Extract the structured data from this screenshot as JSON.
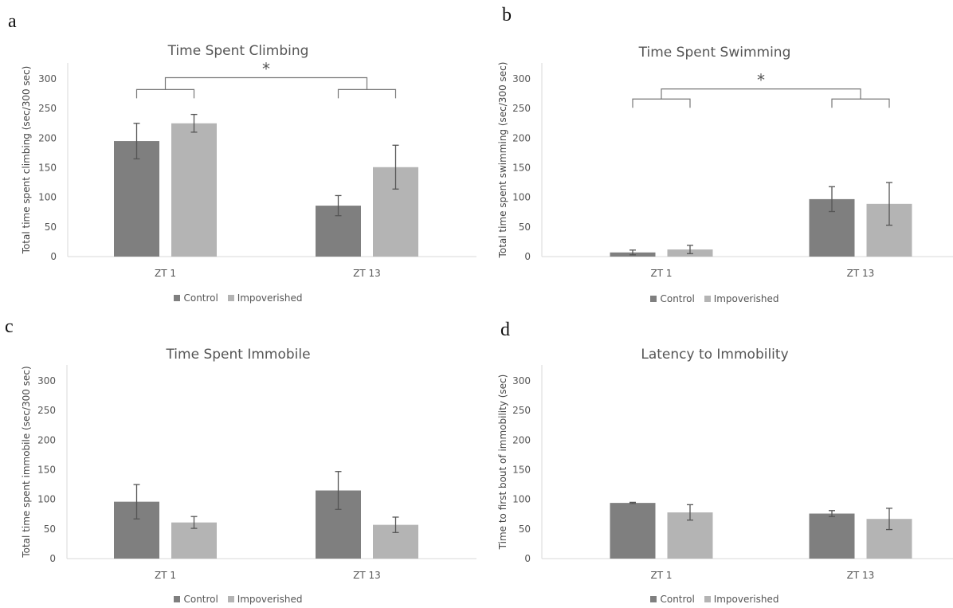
{
  "colors": {
    "control": "#7f7f7f",
    "impoverished": "#b4b4b4",
    "axis": "#d9d9d9",
    "text": "#555555",
    "bracket": "#777777"
  },
  "chart_data": [
    {
      "panel": "a",
      "type": "bar",
      "title": "Time Spent Climbing",
      "ylabel": "Total time spent climbing (sec/300 sec)",
      "xlabel": "",
      "ylim": [
        0,
        300
      ],
      "yticks": [
        0,
        50,
        100,
        150,
        200,
        250,
        300
      ],
      "categories": [
        "ZT 1",
        "ZT 13"
      ],
      "legend_position": "bottom",
      "series": [
        {
          "name": "Control",
          "values": [
            195,
            86
          ],
          "errors": [
            30,
            17
          ]
        },
        {
          "name": "Impoverished",
          "values": [
            225,
            151
          ],
          "errors": [
            15,
            37
          ]
        }
      ],
      "annotation": "*",
      "bracket_levels": [
        282,
        302
      ]
    },
    {
      "panel": "b",
      "type": "bar",
      "title": "Time Spent Swimming",
      "ylabel": "Total time spent swimming (sec/300 sec)",
      "xlabel": "",
      "ylim": [
        0,
        300
      ],
      "yticks": [
        0,
        50,
        100,
        150,
        200,
        250,
        300
      ],
      "categories": [
        "ZT 1",
        "ZT 13"
      ],
      "legend_position": "bottom",
      "series": [
        {
          "name": "Control",
          "values": [
            7,
            97
          ],
          "errors": [
            4,
            21
          ]
        },
        {
          "name": "Impoverished",
          "values": [
            12,
            89
          ],
          "errors": [
            7,
            36
          ]
        }
      ],
      "annotation": "*",
      "bracket_levels": [
        266,
        283
      ]
    },
    {
      "panel": "c",
      "type": "bar",
      "title": "Time Spent Immobile",
      "ylabel": "Total time spent immobile (sec/300 sec)",
      "xlabel": "",
      "ylim": [
        0,
        300
      ],
      "yticks": [
        0,
        50,
        100,
        150,
        200,
        250,
        300
      ],
      "categories": [
        "ZT 1",
        "ZT 13"
      ],
      "legend_position": "bottom",
      "series": [
        {
          "name": "Control",
          "values": [
            96,
            115
          ],
          "errors": [
            29,
            32
          ]
        },
        {
          "name": "Impoverished",
          "values": [
            61,
            57
          ],
          "errors": [
            10,
            13
          ]
        }
      ]
    },
    {
      "panel": "d",
      "type": "bar",
      "title": "Latency to Immobility",
      "ylabel": "Time to first bout of immobility (sec)",
      "xlabel": "",
      "ylim": [
        0,
        300
      ],
      "yticks": [
        0,
        50,
        100,
        150,
        200,
        250,
        300
      ],
      "categories": [
        "ZT 1",
        "ZT 13"
      ],
      "legend_position": "bottom",
      "series": [
        {
          "name": "Control",
          "values": [
            94,
            76
          ],
          "errors": [
            1,
            5
          ]
        },
        {
          "name": "Impoverished",
          "values": [
            78,
            67
          ],
          "errors": [
            13,
            18
          ]
        }
      ]
    }
  ]
}
